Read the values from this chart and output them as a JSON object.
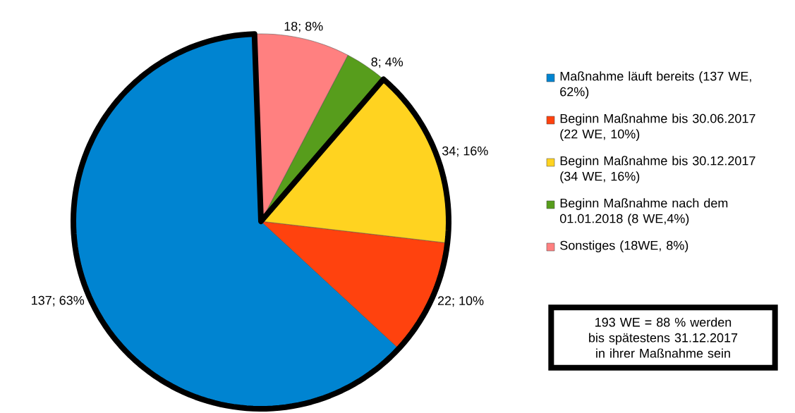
{
  "chart_data": {
    "type": "pie",
    "categories": [
      "Maßnahme läuft bereits (137 WE, 62%)",
      "Beginn Maßnahme bis 30.06.2017 (22 WE, 10%)",
      "Beginn Maßnahme bis 30.12.2017 (34 WE, 16%)",
      "Beginn Maßnahme nach dem 01.01.2018 (8 WE,4%)",
      "Sonstiges (18WE, 8%)"
    ],
    "values": [
      137,
      22,
      34,
      8,
      18
    ],
    "colors": [
      "#0084d1",
      "#ff420e",
      "#ffd320",
      "#579d1c",
      "#ff8080"
    ],
    "value_labels": [
      "137; 63%",
      "22; 10%",
      "34; 16%",
      "8; 4%",
      "18; 8%"
    ],
    "legend": "right",
    "annotations": [
      "193  WE =  88 % werden bis spätestens 31.12.2017 in ihrer Maßnahme sein"
    ]
  }
}
